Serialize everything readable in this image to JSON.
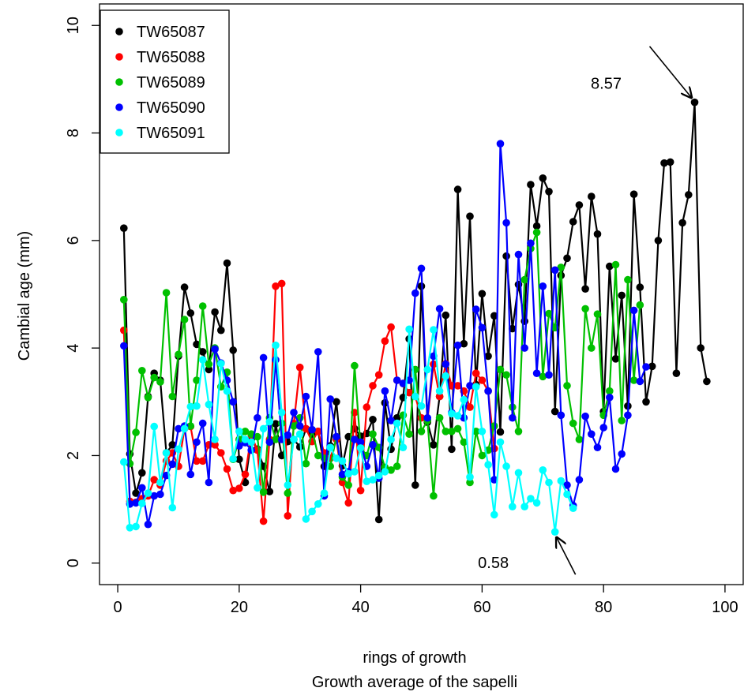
{
  "chart_data": {
    "type": "line",
    "xlabel": "rings of growth",
    "subtitle": "Growth average of the sapelli",
    "ylabel": "Cambial age (mm)",
    "xlim": [
      -3,
      103
    ],
    "ylim": [
      -0.4,
      10.4
    ],
    "x_ticks": [
      0,
      20,
      40,
      60,
      80,
      100
    ],
    "y_ticks": [
      0,
      2,
      4,
      6,
      8,
      10
    ],
    "grid": false,
    "legend_position": "top-left",
    "series": [
      {
        "name": "TW65087",
        "color": "#000000",
        "values": [
          6.23,
          2.03,
          1.3,
          1.68,
          3.1,
          3.53,
          3.4,
          2.05,
          2.2,
          3.85,
          5.13,
          4.65,
          4.07,
          3.93,
          3.6,
          4.67,
          4.33,
          5.58,
          3.96,
          1.93,
          1.5,
          2.3,
          2.12,
          1.8,
          1.33,
          2.59,
          2.0,
          2.26,
          2.3,
          2.16,
          2.5,
          2.4,
          2.45,
          1.8,
          2.18,
          3.0,
          1.81,
          2.35,
          2.5,
          2.36,
          2.41,
          2.67,
          0.81,
          2.98,
          2.12,
          2.7,
          3.08,
          4.17,
          1.45,
          5.15,
          2.62,
          2.2,
          3.1,
          4.61,
          2.12,
          6.95,
          4.08,
          6.45,
          3.32,
          5.01,
          3.85,
          4.6,
          2.44,
          5.71,
          4.36,
          5.18,
          4.5,
          7.04,
          6.27,
          7.16,
          6.91,
          2.82,
          5.35,
          5.67,
          6.35,
          6.66,
          5.1,
          6.82,
          6.12,
          2.82,
          5.52,
          3.8,
          4.98,
          2.92,
          6.86,
          5.13,
          3.0,
          3.66,
          6.0,
          7.44,
          7.46,
          3.53,
          6.33,
          6.85,
          8.57,
          4.0,
          3.38
        ]
      },
      {
        "name": "TW65088",
        "color": "#ff0000",
        "values": [
          4.33,
          1.15,
          1.13,
          1.2,
          1.25,
          1.55,
          1.45,
          1.9,
          2.05,
          1.8,
          2.5,
          2.54,
          1.9,
          1.9,
          2.2,
          2.2,
          2.05,
          1.75,
          1.35,
          1.39,
          1.65,
          2.38,
          2.1,
          0.78,
          2.3,
          5.15,
          5.2,
          0.88,
          2.6,
          3.64,
          2.5,
          2.26,
          2.45,
          2.05,
          1.95,
          2.3,
          1.5,
          1.12,
          2.8,
          1.35,
          2.9,
          3.3,
          3.5,
          4.13,
          4.39,
          3.4,
          3.34,
          3.17,
          3.1,
          2.7,
          2.65,
          3.7,
          3.1,
          3.71,
          3.3,
          3.3,
          3.2,
          2.9,
          3.53,
          3.4,
          3.2,
          2.13
        ]
      },
      {
        "name": "TW65089",
        "color": "#00c000",
        "values": [
          4.9,
          1.85,
          2.43,
          3.58,
          3.08,
          3.45,
          3.37,
          5.03,
          3.1,
          3.88,
          4.53,
          2.55,
          3.4,
          4.78,
          3.7,
          4.0,
          3.28,
          3.55,
          1.93,
          2.3,
          2.45,
          2.4,
          2.35,
          1.32,
          2.7,
          2.3,
          2.6,
          1.3,
          2.55,
          2.7,
          1.85,
          2.48,
          2.0,
          1.95,
          1.8,
          2.35,
          1.6,
          1.45,
          3.67,
          2.15,
          2.0,
          2.4,
          2.15,
          1.78,
          1.73,
          1.8,
          2.75,
          2.4,
          3.6,
          2.45,
          2.65,
          1.25,
          2.7,
          2.45,
          2.45,
          2.5,
          2.25,
          1.5,
          2.45,
          2.0,
          2.1,
          2.55,
          3.6,
          3.5,
          2.9,
          2.45,
          5.27,
          5.85,
          6.15,
          3.47,
          4.64,
          4.38,
          5.5,
          3.3,
          2.6,
          2.3,
          4.73,
          4.0,
          4.63,
          2.75,
          3.2,
          5.55,
          2.65,
          5.27,
          3.4,
          4.8
        ]
      },
      {
        "name": "TW65090",
        "color": "#0000ff",
        "values": [
          4.04,
          1.1,
          1.12,
          1.4,
          0.72,
          1.25,
          1.28,
          1.63,
          1.84,
          2.5,
          2.55,
          1.65,
          2.25,
          2.6,
          1.5,
          3.98,
          3.72,
          3.4,
          3.0,
          2.18,
          2.24,
          2.1,
          2.7,
          3.82,
          2.25,
          3.78,
          2.3,
          2.38,
          2.8,
          2.55,
          3.1,
          2.48,
          3.93,
          1.25,
          3.05,
          2.35,
          1.65,
          1.7,
          2.3,
          2.25,
          1.8,
          2.2,
          1.58,
          3.2,
          2.65,
          3.4,
          3.34,
          3.4,
          5.02,
          5.48,
          2.7,
          3.85,
          4.73,
          3.7,
          2.8,
          4.05,
          2.7,
          3.3,
          4.72,
          4.38,
          3.2,
          1.55,
          7.8,
          6.33,
          2.7,
          5.74,
          4.0,
          5.95,
          3.53,
          5.15,
          3.5,
          5.45,
          2.75,
          1.45,
          1.07,
          1.55,
          2.73,
          2.4,
          2.15,
          2.52,
          3.08,
          1.75,
          2.03,
          2.75,
          4.7,
          3.38,
          3.65
        ]
      },
      {
        "name": "TW65091",
        "color": "#00ffff",
        "values": [
          1.88,
          0.66,
          0.68,
          1.11,
          1.3,
          2.54,
          1.5,
          2.05,
          1.03,
          2.12,
          2.5,
          2.91,
          2.92,
          3.78,
          2.95,
          2.3,
          3.71,
          3.2,
          1.94,
          2.45,
          2.3,
          2.25,
          1.4,
          2.5,
          2.63,
          4.05,
          2.8,
          1.45,
          2.3,
          2.4,
          0.82,
          0.96,
          1.1,
          1.3,
          2.15,
          1.95,
          1.9,
          1.66,
          1.7,
          2.14,
          1.52,
          1.55,
          1.63,
          1.7,
          2.3,
          2.6,
          2.15,
          4.35,
          3.1,
          2.92,
          3.6,
          4.34,
          3.2,
          3.48,
          2.78,
          2.74,
          3.04,
          1.6,
          3.28,
          2.45,
          1.83,
          0.9,
          2.25,
          1.8,
          1.05,
          1.68,
          1.05,
          1.2,
          1.12,
          1.73,
          1.5,
          0.58,
          1.53,
          1.28,
          1.02
        ]
      }
    ],
    "annotations": [
      {
        "text": "8.57",
        "x": 95,
        "y": 8.57
      },
      {
        "text": "0.58",
        "x": 72,
        "y": 0.58
      }
    ]
  }
}
